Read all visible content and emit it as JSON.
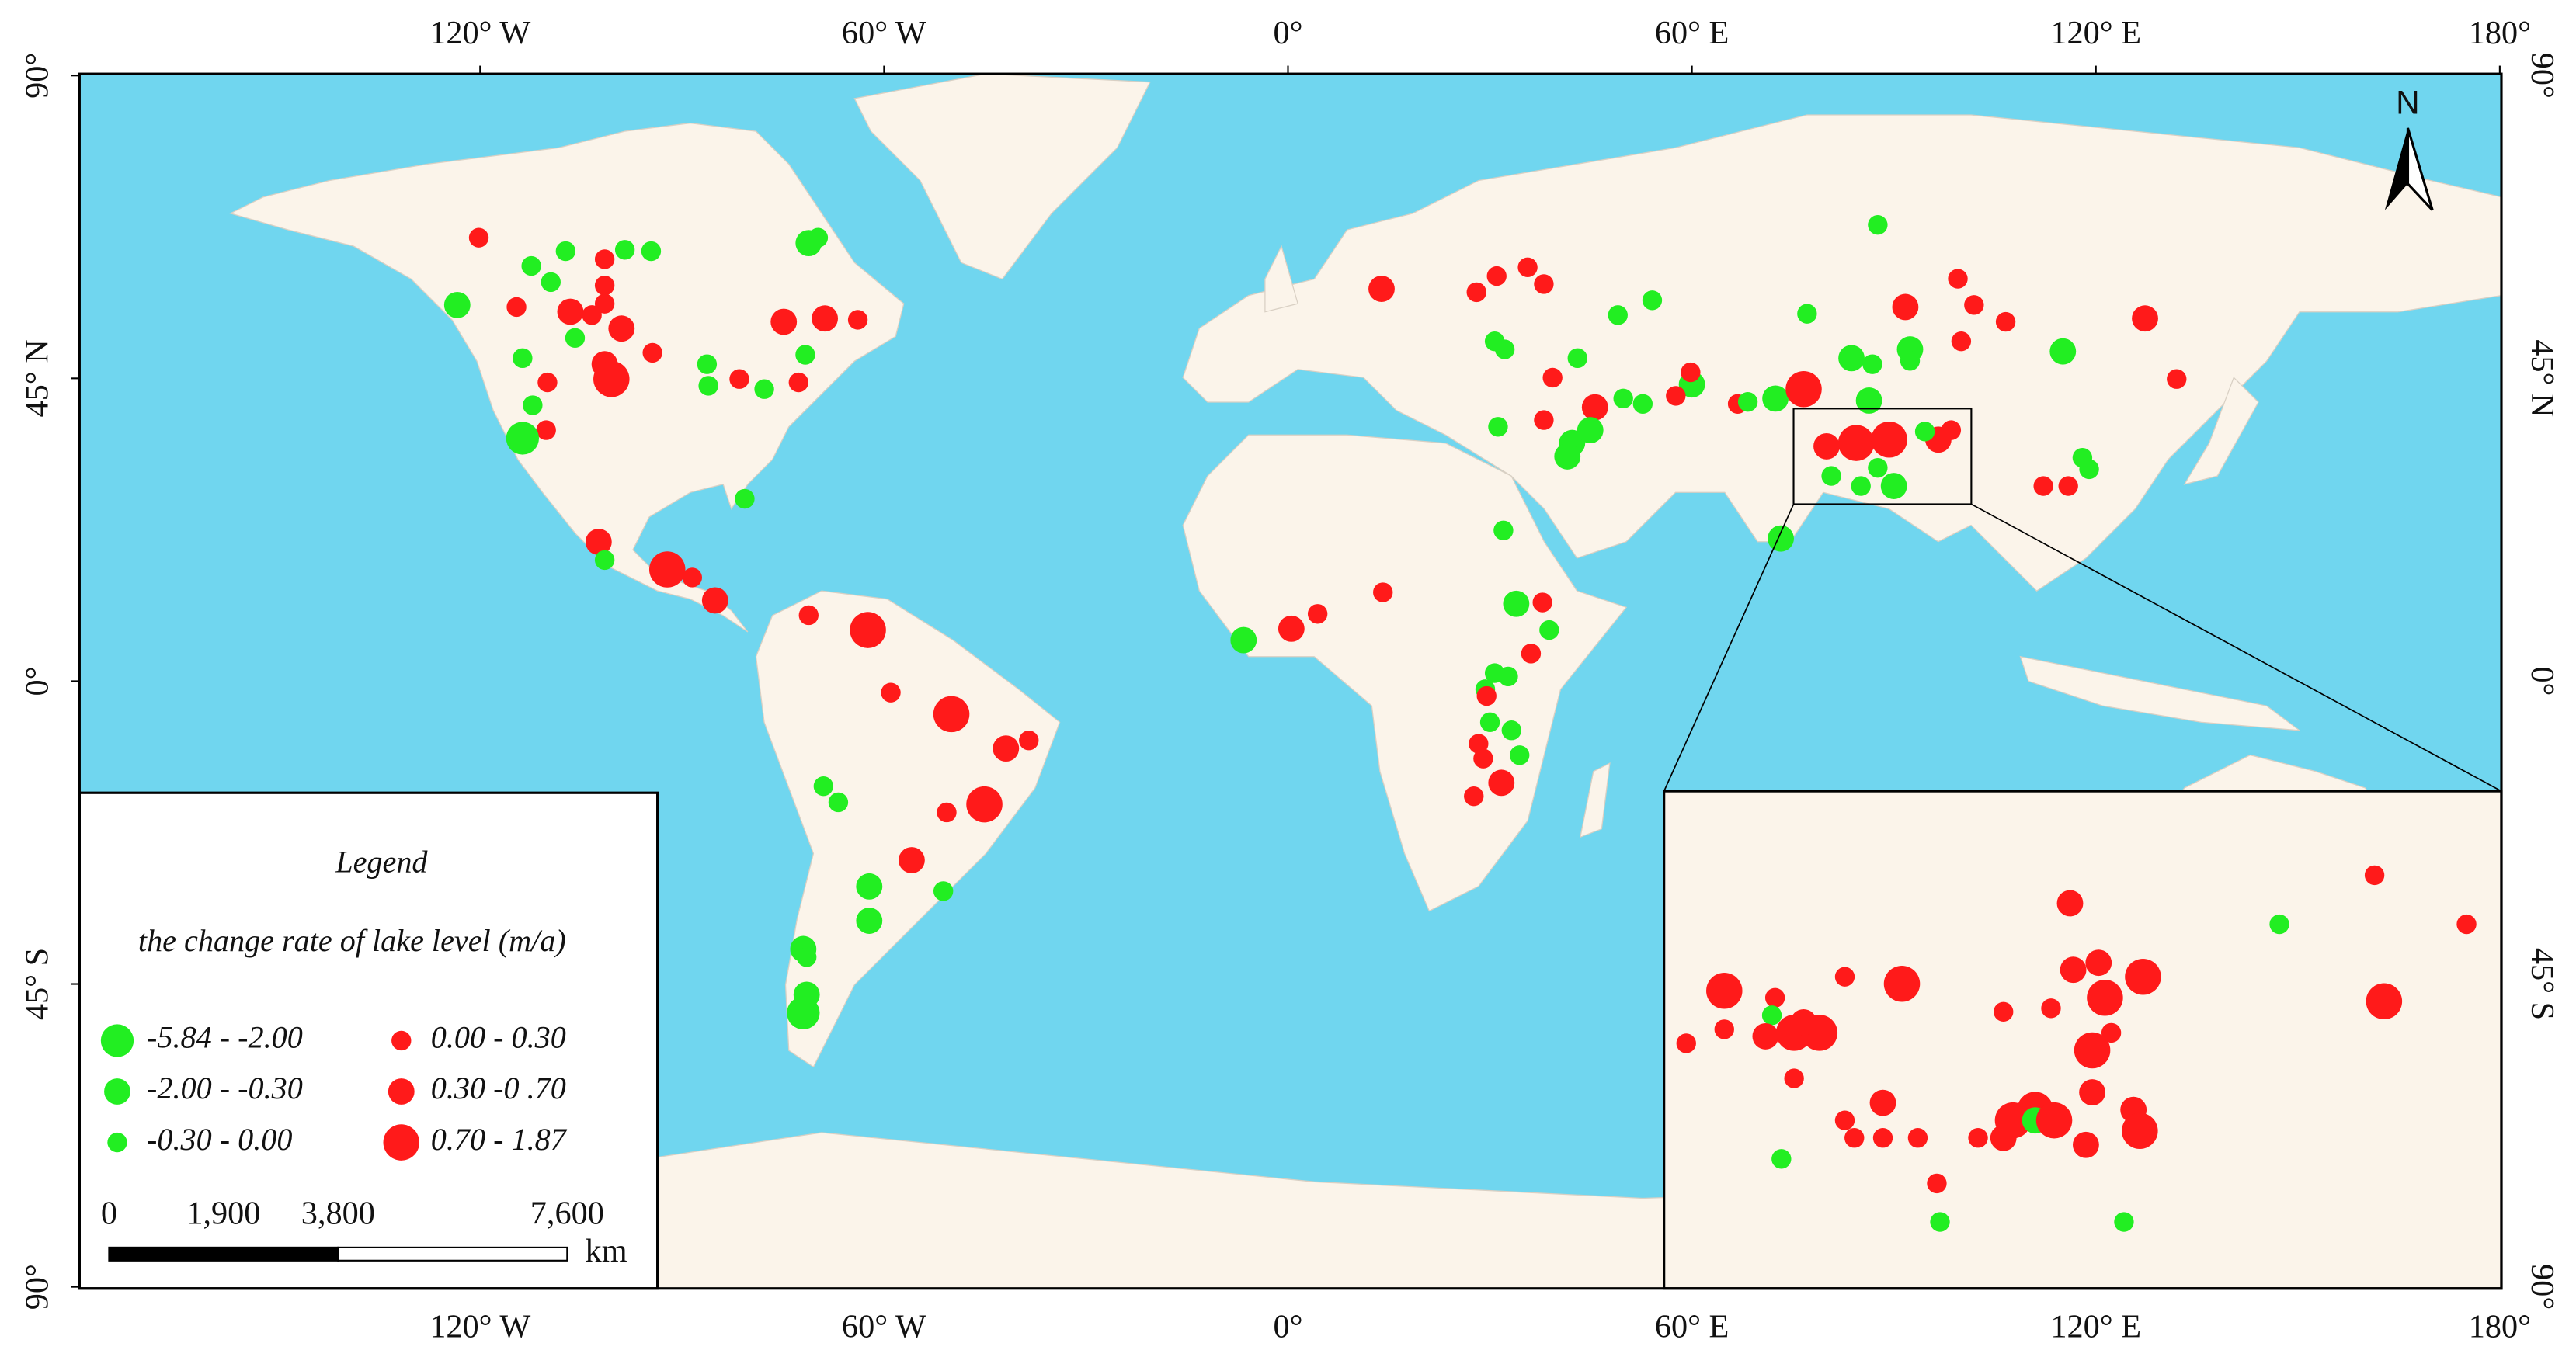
{
  "axes": {
    "lon_ticks": [
      {
        "value": -120,
        "label": "120° W"
      },
      {
        "value": -60,
        "label": "60° W"
      },
      {
        "value": 0,
        "label": "0°"
      },
      {
        "value": 60,
        "label": "60° E"
      },
      {
        "value": 120,
        "label": "120° E"
      },
      {
        "value": 180,
        "label": "180°"
      }
    ],
    "lat_ticks": [
      {
        "value": 90,
        "label": "90°"
      },
      {
        "value": 45,
        "label": "45° N"
      },
      {
        "value": 0,
        "label": "0°"
      },
      {
        "value": -45,
        "label": "45° S"
      },
      {
        "value": -90,
        "label": "90°"
      }
    ]
  },
  "north": "N",
  "legend": {
    "title": "Legend",
    "subtitle": "the change rate of lake level (m/a)",
    "classes": [
      {
        "label": "-5.84 - -2.00",
        "color": "#22ee22"
      },
      {
        "label": "-2.00 - -0.30",
        "color": "#22ee22"
      },
      {
        "label": "-0.30 - 0.00",
        "color": "#22ee22"
      },
      {
        "label": "0.00 - 0.30",
        "color": "#ff1a1a"
      },
      {
        "label": "0.30 -0 .70",
        "color": "#ff1a1a"
      },
      {
        "label": "0.70 - 1.87",
        "color": "#ff1a1a"
      }
    ]
  },
  "scale_bar": {
    "ticks": [
      0,
      {
        "value": 1900,
        "label": "1,900"
      },
      {
        "value": 3800,
        "label": "3,800"
      },
      {
        "value": 7600,
        "label": "7,600"
      }
    ],
    "unit": "km"
  },
  "lakes": [
    {
      "lon": -120.2,
      "lat": 65.9,
      "class": 3
    },
    {
      "lon": -112.4,
      "lat": 61.7,
      "class": 2
    },
    {
      "lon": -107.3,
      "lat": 63.9,
      "class": 2
    },
    {
      "lon": -109.5,
      "lat": 59.3,
      "class": 2
    },
    {
      "lon": -98.5,
      "lat": 64.1,
      "class": 2
    },
    {
      "lon": -94.6,
      "lat": 63.9,
      "class": 2
    },
    {
      "lon": -123.4,
      "lat": 55.9,
      "class": 1
    },
    {
      "lon": -114.6,
      "lat": 55.6,
      "class": 3
    },
    {
      "lon": -101.5,
      "lat": 62.7,
      "class": 3
    },
    {
      "lon": -101.5,
      "lat": 58.8,
      "class": 3
    },
    {
      "lon": -101.5,
      "lat": 56.1,
      "class": 3
    },
    {
      "lon": -106.6,
      "lat": 54.9,
      "class": 4
    },
    {
      "lon": -103.4,
      "lat": 54.4,
      "class": 3
    },
    {
      "lon": -99.0,
      "lat": 52.4,
      "class": 4
    },
    {
      "lon": -105.9,
      "lat": 51.0,
      "class": 2
    },
    {
      "lon": -113.7,
      "lat": 48.0,
      "class": 2
    },
    {
      "lon": -101.5,
      "lat": 47.1,
      "class": 4
    },
    {
      "lon": -100.5,
      "lat": 44.9,
      "class": 5
    },
    {
      "lon": -94.4,
      "lat": 48.8,
      "class": 3
    },
    {
      "lon": -110.0,
      "lat": 44.4,
      "class": 3
    },
    {
      "lon": -112.2,
      "lat": 41.0,
      "class": 2
    },
    {
      "lon": -110.2,
      "lat": 37.3,
      "class": 3
    },
    {
      "lon": -113.7,
      "lat": 36.1,
      "class": 0
    },
    {
      "lon": -86.3,
      "lat": 47.1,
      "class": 2
    },
    {
      "lon": -86.1,
      "lat": 43.9,
      "class": 2
    },
    {
      "lon": -81.5,
      "lat": 44.9,
      "class": 3
    },
    {
      "lon": -77.8,
      "lat": 43.4,
      "class": 2
    },
    {
      "lon": -72.7,
      "lat": 44.4,
      "class": 3
    },
    {
      "lon": -71.7,
      "lat": 48.5,
      "class": 2
    },
    {
      "lon": -74.9,
      "lat": 53.4,
      "class": 4
    },
    {
      "lon": -68.8,
      "lat": 53.9,
      "class": 4
    },
    {
      "lon": -63.9,
      "lat": 53.7,
      "class": 3
    },
    {
      "lon": -71.2,
      "lat": 65.1,
      "class": 1
    },
    {
      "lon": -69.8,
      "lat": 65.9,
      "class": 2
    },
    {
      "lon": -80.7,
      "lat": 27.1,
      "class": 2
    },
    {
      "lon": -102.4,
      "lat": 20.7,
      "class": 4
    },
    {
      "lon": -101.5,
      "lat": 18.0,
      "class": 2
    },
    {
      "lon": -92.2,
      "lat": 16.6,
      "class": 5
    },
    {
      "lon": -88.5,
      "lat": 15.4,
      "class": 3
    },
    {
      "lon": -85.1,
      "lat": 12.0,
      "class": 4
    },
    {
      "lon": -71.2,
      "lat": 9.8,
      "class": 3
    },
    {
      "lon": -62.4,
      "lat": 7.6,
      "class": 5
    },
    {
      "lon": -59.0,
      "lat": -1.7,
      "class": 3
    },
    {
      "lon": -50.0,
      "lat": -4.9,
      "class": 5
    },
    {
      "lon": -41.9,
      "lat": -10.0,
      "class": 4
    },
    {
      "lon": -38.5,
      "lat": -8.8,
      "class": 3
    },
    {
      "lon": -69.0,
      "lat": -15.6,
      "class": 2
    },
    {
      "lon": -66.8,
      "lat": -18.0,
      "class": 2
    },
    {
      "lon": -50.7,
      "lat": -19.5,
      "class": 3
    },
    {
      "lon": -45.1,
      "lat": -18.3,
      "class": 5
    },
    {
      "lon": -55.9,
      "lat": -26.6,
      "class": 4
    },
    {
      "lon": -51.2,
      "lat": -31.2,
      "class": 2
    },
    {
      "lon": -62.2,
      "lat": -30.5,
      "class": 1
    },
    {
      "lon": -62.2,
      "lat": -35.6,
      "class": 1
    },
    {
      "lon": -72.0,
      "lat": -39.8,
      "class": 1
    },
    {
      "lon": -71.5,
      "lat": -41.0,
      "class": 2
    },
    {
      "lon": -71.5,
      "lat": -46.6,
      "class": 1
    },
    {
      "lon": -72.0,
      "lat": -49.3,
      "class": 0
    },
    {
      "lon": 13.9,
      "lat": 58.3,
      "class": 4
    },
    {
      "lon": 28.0,
      "lat": 57.8,
      "class": 3
    },
    {
      "lon": 31.0,
      "lat": 60.2,
      "class": 3
    },
    {
      "lon": 35.6,
      "lat": 61.5,
      "class": 3
    },
    {
      "lon": 38.0,
      "lat": 59.0,
      "class": 3
    },
    {
      "lon": 30.7,
      "lat": 50.5,
      "class": 2
    },
    {
      "lon": 32.2,
      "lat": 49.3,
      "class": 2
    },
    {
      "lon": 39.3,
      "lat": 45.1,
      "class": 3
    },
    {
      "lon": 43.0,
      "lat": 48.0,
      "class": 2
    },
    {
      "lon": 45.6,
      "lat": 40.7,
      "class": 4
    },
    {
      "lon": 38.0,
      "lat": 38.8,
      "class": 3
    },
    {
      "lon": 49.8,
      "lat": 42.0,
      "class": 2
    },
    {
      "lon": 52.7,
      "lat": 41.2,
      "class": 2
    },
    {
      "lon": 42.2,
      "lat": 35.4,
      "class": 1
    },
    {
      "lon": 44.9,
      "lat": 37.3,
      "class": 1
    },
    {
      "lon": 41.5,
      "lat": 33.4,
      "class": 1
    },
    {
      "lon": 31.2,
      "lat": 37.8,
      "class": 2
    },
    {
      "lon": 49.0,
      "lat": 54.4,
      "class": 2
    },
    {
      "lon": 54.1,
      "lat": 56.6,
      "class": 2
    },
    {
      "lon": 60.0,
      "lat": 44.1,
      "class": 1
    },
    {
      "lon": 57.6,
      "lat": 42.4,
      "class": 3
    },
    {
      "lon": 59.8,
      "lat": 45.9,
      "class": 3
    },
    {
      "lon": 66.8,
      "lat": 41.2,
      "class": 3
    },
    {
      "lon": 68.3,
      "lat": 41.5,
      "class": 2
    },
    {
      "lon": 72.4,
      "lat": 42.0,
      "class": 1
    },
    {
      "lon": 76.6,
      "lat": 43.4,
      "class": 5
    },
    {
      "lon": 77.1,
      "lat": 54.6,
      "class": 2
    },
    {
      "lon": 83.7,
      "lat": 48.0,
      "class": 1
    },
    {
      "lon": 86.8,
      "lat": 47.1,
      "class": 2
    },
    {
      "lon": 86.3,
      "lat": 41.7,
      "class": 1
    },
    {
      "lon": 87.6,
      "lat": 67.8,
      "class": 2
    },
    {
      "lon": 91.7,
      "lat": 55.6,
      "class": 4
    },
    {
      "lon": 92.4,
      "lat": 49.3,
      "class": 1
    },
    {
      "lon": 92.4,
      "lat": 47.6,
      "class": 2
    },
    {
      "lon": 99.5,
      "lat": 59.8,
      "class": 3
    },
    {
      "lon": 101.9,
      "lat": 55.9,
      "class": 3
    },
    {
      "lon": 106.6,
      "lat": 53.4,
      "class": 3
    },
    {
      "lon": 100.0,
      "lat": 50.5,
      "class": 3
    },
    {
      "lon": 115.1,
      "lat": 49.0,
      "class": 1
    },
    {
      "lon": 127.3,
      "lat": 53.9,
      "class": 4
    },
    {
      "lon": 132.0,
      "lat": 44.9,
      "class": 3
    },
    {
      "lon": 118.0,
      "lat": 33.2,
      "class": 2
    },
    {
      "lon": 119.0,
      "lat": 31.5,
      "class": 2
    },
    {
      "lon": 112.2,
      "lat": 29.0,
      "class": 3
    },
    {
      "lon": 115.9,
      "lat": 29.0,
      "class": 3
    },
    {
      "lon": 73.2,
      "lat": 21.2,
      "class": 1
    },
    {
      "lon": 80.0,
      "lat": 34.9,
      "class": 4
    },
    {
      "lon": 84.4,
      "lat": 35.4,
      "class": 5
    },
    {
      "lon": 89.3,
      "lat": 35.9,
      "class": 5
    },
    {
      "lon": 96.6,
      "lat": 35.9,
      "class": 4
    },
    {
      "lon": 80.7,
      "lat": 30.5,
      "class": 2
    },
    {
      "lon": 85.1,
      "lat": 29.0,
      "class": 2
    },
    {
      "lon": 90.0,
      "lat": 29.0,
      "class": 1
    },
    {
      "lon": 87.6,
      "lat": 31.7,
      "class": 2
    },
    {
      "lon": 94.6,
      "lat": 37.1,
      "class": 2
    },
    {
      "lon": 98.5,
      "lat": 37.3,
      "class": 3
    },
    {
      "lon": -6.6,
      "lat": 6.1,
      "class": 1
    },
    {
      "lon": 0.5,
      "lat": 7.8,
      "class": 4
    },
    {
      "lon": 4.4,
      "lat": 10.0,
      "class": 3
    },
    {
      "lon": 14.1,
      "lat": 13.2,
      "class": 3
    },
    {
      "lon": 32.0,
      "lat": 22.4,
      "class": 2
    },
    {
      "lon": 33.9,
      "lat": 11.5,
      "class": 1
    },
    {
      "lon": 38.8,
      "lat": 7.6,
      "class": 2
    },
    {
      "lon": 37.8,
      "lat": 11.7,
      "class": 3
    },
    {
      "lon": 36.1,
      "lat": 4.1,
      "class": 3
    },
    {
      "lon": 30.7,
      "lat": 1.2,
      "class": 2
    },
    {
      "lon": 29.3,
      "lat": -1.2,
      "class": 2
    },
    {
      "lon": 32.7,
      "lat": 0.7,
      "class": 2
    },
    {
      "lon": 29.5,
      "lat": -2.2,
      "class": 3
    },
    {
      "lon": 30.0,
      "lat": -6.1,
      "class": 2
    },
    {
      "lon": 33.2,
      "lat": -7.3,
      "class": 2
    },
    {
      "lon": 28.3,
      "lat": -9.3,
      "class": 3
    },
    {
      "lon": 29.0,
      "lat": -11.5,
      "class": 3
    },
    {
      "lon": 31.7,
      "lat": -15.1,
      "class": 4
    },
    {
      "lon": 27.6,
      "lat": -17.1,
      "class": 3
    },
    {
      "lon": 34.4,
      "lat": -11.0,
      "class": 2
    }
  ],
  "inset": {
    "lon": [
      75.1,
      101.5
    ],
    "lat": [
      26.3,
      40.5
    ],
    "lakes": [
      {
        "lon": 77.0,
        "lat": 34.8,
        "class": 5
      },
      {
        "lon": 75.8,
        "lat": 33.3,
        "class": 3
      },
      {
        "lon": 77.0,
        "lat": 33.7,
        "class": 3
      },
      {
        "lon": 78.6,
        "lat": 34.6,
        "class": 3
      },
      {
        "lon": 78.5,
        "lat": 34.1,
        "class": 2
      },
      {
        "lon": 78.3,
        "lat": 33.5,
        "class": 4
      },
      {
        "lon": 79.2,
        "lat": 33.6,
        "class": 5
      },
      {
        "lon": 80.0,
        "lat": 33.6,
        "class": 5
      },
      {
        "lon": 79.5,
        "lat": 33.9,
        "class": 4
      },
      {
        "lon": 80.8,
        "lat": 35.2,
        "class": 3
      },
      {
        "lon": 82.6,
        "lat": 35.0,
        "class": 5
      },
      {
        "lon": 79.2,
        "lat": 32.3,
        "class": 3
      },
      {
        "lon": 78.8,
        "lat": 30.0,
        "class": 2
      },
      {
        "lon": 80.8,
        "lat": 31.1,
        "class": 3
      },
      {
        "lon": 81.1,
        "lat": 30.6,
        "class": 3
      },
      {
        "lon": 82.0,
        "lat": 31.6,
        "class": 4
      },
      {
        "lon": 82.0,
        "lat": 30.6,
        "class": 3
      },
      {
        "lon": 83.1,
        "lat": 30.6,
        "class": 3
      },
      {
        "lon": 83.7,
        "lat": 29.3,
        "class": 3
      },
      {
        "lon": 83.8,
        "lat": 28.2,
        "class": 2
      },
      {
        "lon": 85.0,
        "lat": 30.6,
        "class": 3
      },
      {
        "lon": 85.8,
        "lat": 34.2,
        "class": 3
      },
      {
        "lon": 85.8,
        "lat": 30.6,
        "class": 4
      },
      {
        "lon": 86.1,
        "lat": 31.1,
        "class": 5
      },
      {
        "lon": 86.8,
        "lat": 31.4,
        "class": 5
      },
      {
        "lon": 86.8,
        "lat": 31.1,
        "class": 1
      },
      {
        "lon": 87.4,
        "lat": 31.1,
        "class": 5
      },
      {
        "lon": 87.3,
        "lat": 34.3,
        "class": 3
      },
      {
        "lon": 87.9,
        "lat": 37.3,
        "class": 4
      },
      {
        "lon": 88.0,
        "lat": 35.4,
        "class": 4
      },
      {
        "lon": 88.8,
        "lat": 35.6,
        "class": 4
      },
      {
        "lon": 89.0,
        "lat": 34.6,
        "class": 5
      },
      {
        "lon": 88.6,
        "lat": 33.1,
        "class": 5
      },
      {
        "lon": 88.6,
        "lat": 31.9,
        "class": 4
      },
      {
        "lon": 88.4,
        "lat": 30.4,
        "class": 4
      },
      {
        "lon": 89.2,
        "lat": 33.6,
        "class": 3
      },
      {
        "lon": 90.2,
        "lat": 35.2,
        "class": 5
      },
      {
        "lon": 89.9,
        "lat": 31.4,
        "class": 4
      },
      {
        "lon": 90.1,
        "lat": 30.8,
        "class": 5
      },
      {
        "lon": 89.6,
        "lat": 28.2,
        "class": 2
      },
      {
        "lon": 94.5,
        "lat": 36.7,
        "class": 2
      },
      {
        "lon": 97.5,
        "lat": 38.1,
        "class": 3
      },
      {
        "lon": 100.4,
        "lat": 36.7,
        "class": 3
      },
      {
        "lon": 97.8,
        "lat": 34.5,
        "class": 5
      }
    ]
  }
}
